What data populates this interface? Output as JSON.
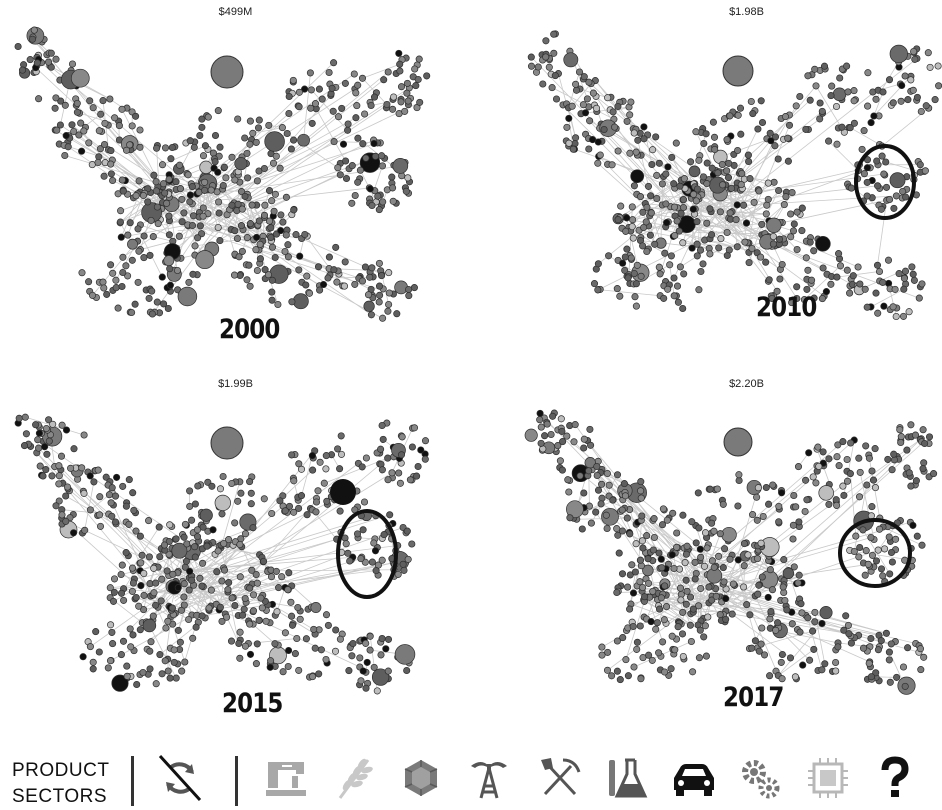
{
  "panels": [
    {
      "year": "2000",
      "value": "$499M",
      "highlight": false
    },
    {
      "year": "2010",
      "value": "$1.98B",
      "highlight": true
    },
    {
      "year": "2015",
      "value": "$1.99B",
      "highlight": true
    },
    {
      "year": "2017",
      "value": "$2.20B",
      "highlight": true
    }
  ],
  "legend": {
    "title_line1": "PRODUCT",
    "title_line2": "SECTORS",
    "sectors": [
      {
        "name": "services",
        "icon": "services-off-icon",
        "color": "#444444"
      },
      {
        "name": "textiles",
        "icon": "sewing-machine-icon",
        "color": "#a8a8a8"
      },
      {
        "name": "agriculture",
        "icon": "wheat-icon",
        "color": "#c8c8c8"
      },
      {
        "name": "stone",
        "icon": "gem-icon",
        "color": "#7a7a7a"
      },
      {
        "name": "minerals",
        "icon": "oil-derrick-icon",
        "color": "#555555"
      },
      {
        "name": "metals",
        "icon": "pickaxe-shovel-icon",
        "color": "#555555"
      },
      {
        "name": "chemicals",
        "icon": "flask-icon",
        "color": "#555555"
      },
      {
        "name": "vehicles",
        "icon": "car-icon",
        "color": "#111111"
      },
      {
        "name": "machinery",
        "icon": "gears-icon",
        "color": "#777777"
      },
      {
        "name": "electronics",
        "icon": "chip-icon",
        "color": "#b8b8b8"
      },
      {
        "name": "other",
        "icon": "question-mark-icon",
        "color": "#111111"
      }
    ]
  }
}
